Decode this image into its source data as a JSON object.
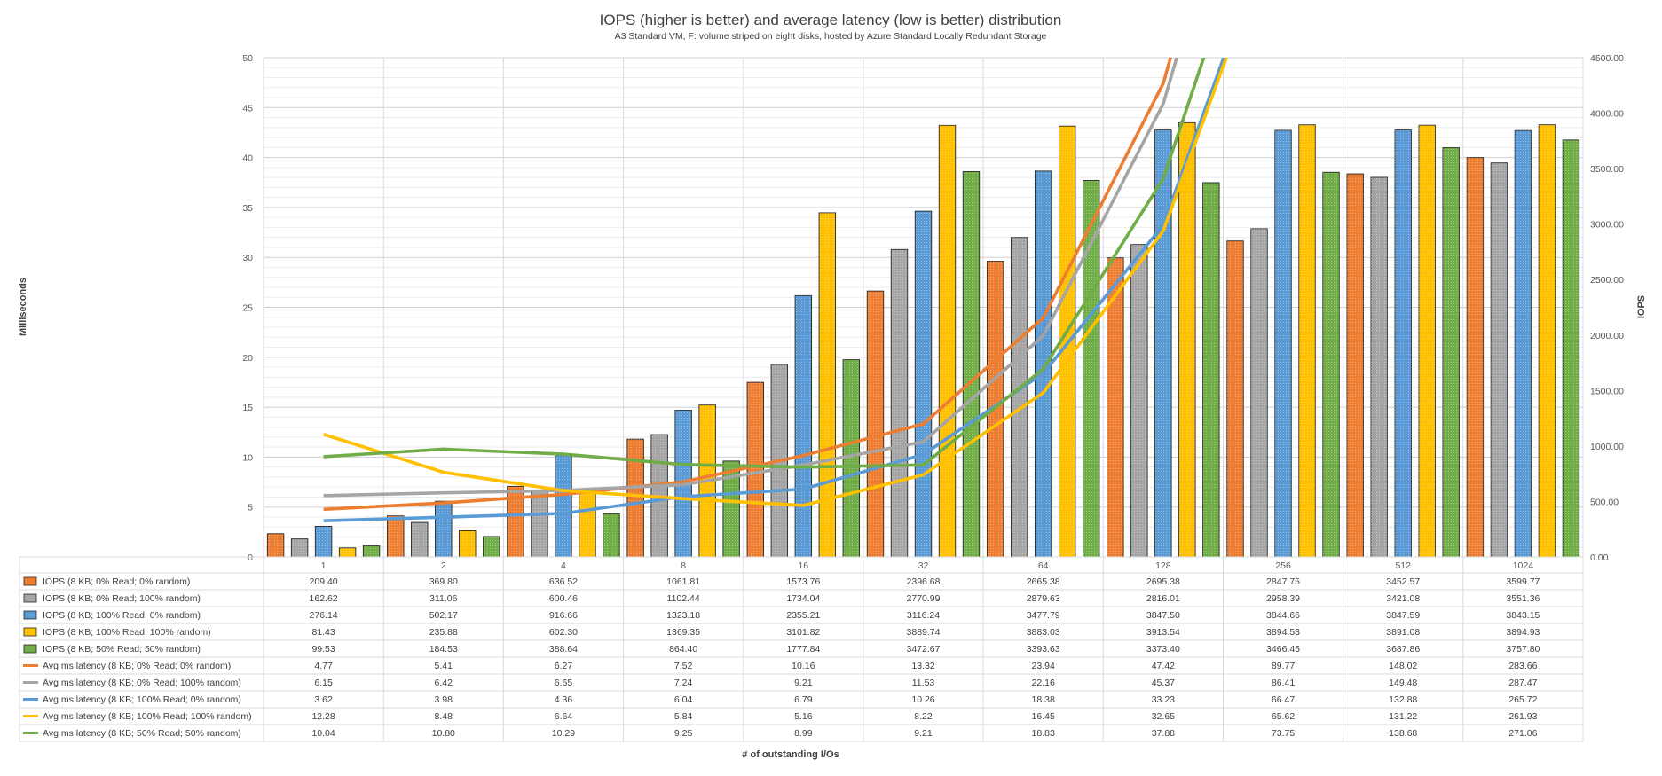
{
  "chart_data": {
    "type": "bar",
    "title": "IOPS (higher is better) and average latency (low is better) distribution",
    "subtitle": "A3 Standard VM, F: volume striped on eight disks, hosted by Azure Standard Locally Redundant Storage",
    "xlabel": "# of outstanding I/Os",
    "ylabel_left": "Milliseconds",
    "ylabel_right": "IOPS",
    "ylim_left": [
      0,
      50
    ],
    "ylim_right": [
      0,
      4500
    ],
    "left_ticks": [
      "0",
      "5",
      "10",
      "15",
      "20",
      "25",
      "30",
      "35",
      "40",
      "45",
      "50"
    ],
    "right_ticks": [
      "0.00",
      "500.00",
      "1000.00",
      "1500.00",
      "2000.00",
      "2500.00",
      "3000.00",
      "3500.00",
      "4000.00",
      "4500.00"
    ],
    "grid": true,
    "legend": "data-table",
    "categories": [
      "1",
      "2",
      "4",
      "8",
      "16",
      "32",
      "64",
      "128",
      "256",
      "512",
      "1024"
    ],
    "bar_series": [
      {
        "name": "IOPS (8 KB; 0% Read; 0% random)",
        "color": "#ED7D31",
        "values": [
          "209.40",
          "369.80",
          "636.52",
          "1061.81",
          "1573.76",
          "2396.68",
          "2665.38",
          "2695.38",
          "2847.75",
          "3452.57",
          "3599.77"
        ]
      },
      {
        "name": "IOPS (8 KB; 0% Read; 100% random)",
        "color": "#A5A5A5",
        "values": [
          "162.62",
          "311.06",
          "600.46",
          "1102.44",
          "1734.04",
          "2770.99",
          "2879.63",
          "2816.01",
          "2958.39",
          "3421.08",
          "3551.36"
        ]
      },
      {
        "name": "IOPS (8 KB; 100% Read; 0% random)",
        "color": "#5B9BD5",
        "values": [
          "276.14",
          "502.17",
          "916.66",
          "1323.18",
          "2355.21",
          "3116.24",
          "3477.79",
          "3847.50",
          "3844.66",
          "3847.59",
          "3843.15"
        ]
      },
      {
        "name": "IOPS (8 KB; 100% Read; 100% random)",
        "color": "#FFC000",
        "values": [
          "81.43",
          "235.88",
          "602.30",
          "1369.35",
          "3101.82",
          "3889.74",
          "3883.03",
          "3913.54",
          "3894.53",
          "3891.08",
          "3894.93"
        ]
      },
      {
        "name": "IOPS (8 KB; 50% Read; 50% random)",
        "color": "#70AD47",
        "values": [
          "99.53",
          "184.53",
          "388.64",
          "864.40",
          "1777.84",
          "3472.67",
          "3393.63",
          "3373.40",
          "3466.45",
          "3687.86",
          "3757.80"
        ]
      }
    ],
    "line_series": [
      {
        "name": "Avg ms latency (8 KB; 0% Read; 0% random)",
        "color": "#ED7D31",
        "values": [
          "4.77",
          "5.41",
          "6.27",
          "7.52",
          "10.16",
          "13.32",
          "23.94",
          "47.42",
          "89.77",
          "148.02",
          "283.66"
        ]
      },
      {
        "name": "Avg ms latency (8 KB; 0% Read; 100% random)",
        "color": "#A5A5A5",
        "values": [
          "6.15",
          "6.42",
          "6.65",
          "7.24",
          "9.21",
          "11.53",
          "22.16",
          "45.37",
          "86.41",
          "149.48",
          "287.47"
        ]
      },
      {
        "name": "Avg ms latency (8 KB; 100% Read; 0% random)",
        "color": "#5B9BD5",
        "values": [
          "3.62",
          "3.98",
          "4.36",
          "6.04",
          "6.79",
          "10.26",
          "18.38",
          "33.23",
          "66.47",
          "132.88",
          "265.72"
        ]
      },
      {
        "name": "Avg ms latency (8 KB; 100% Read; 100% random)",
        "color": "#FFC000",
        "values": [
          "12.28",
          "8.48",
          "6.64",
          "5.84",
          "5.16",
          "8.22",
          "16.45",
          "32.65",
          "65.62",
          "131.22",
          "261.93"
        ]
      },
      {
        "name": "Avg ms latency (8 KB; 50% Read; 50% random)",
        "color": "#70AD47",
        "values": [
          "10.04",
          "10.80",
          "10.29",
          "9.25",
          "8.99",
          "9.21",
          "18.83",
          "37.88",
          "73.75",
          "138.68",
          "271.06"
        ]
      }
    ]
  }
}
